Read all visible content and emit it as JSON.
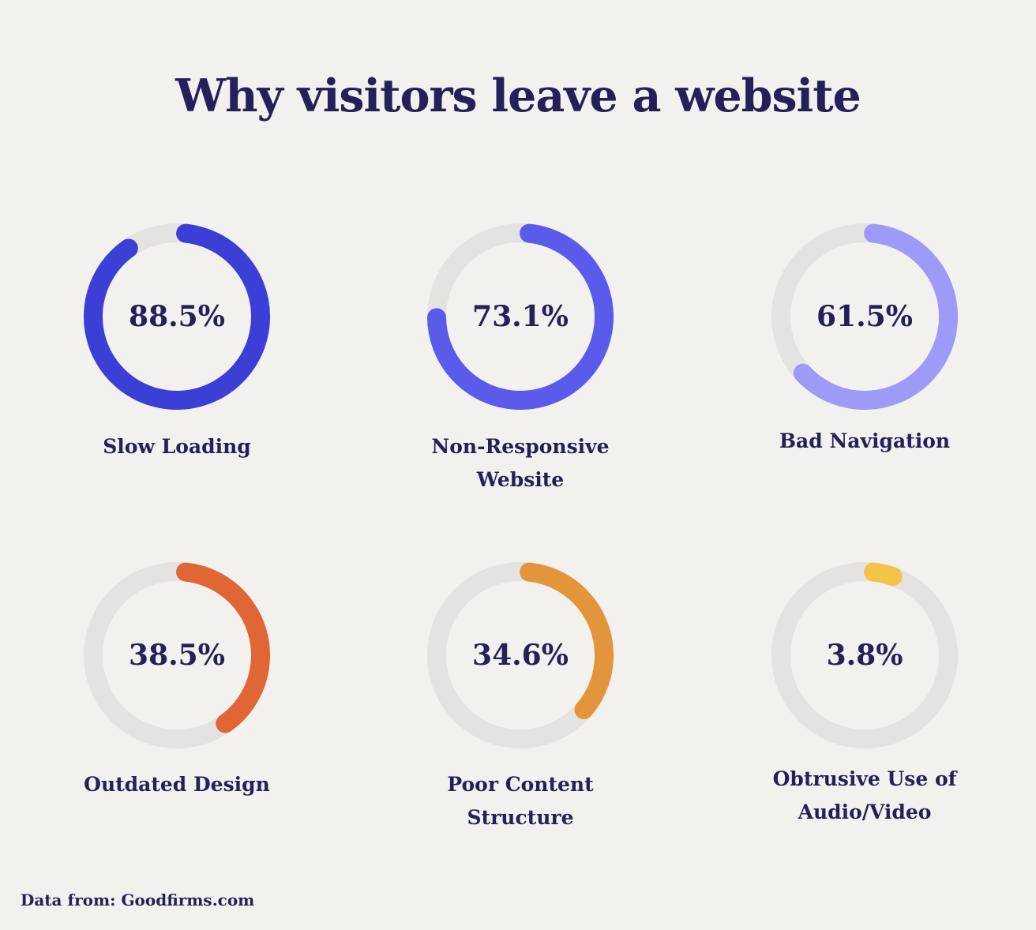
{
  "title": "Why visitors leave a website",
  "source": "Data from: Goodfirms.com",
  "chart_data": {
    "type": "pie",
    "title": "Why visitors leave a website",
    "unit": "%",
    "items": [
      {
        "label": "Slow Loading",
        "value": 88.5,
        "display": "88.5%",
        "color": "#3c3fd6"
      },
      {
        "label": "Non-Responsive\nWebsite",
        "value": 73.1,
        "display": "73.1%",
        "color": "#5a5aeb"
      },
      {
        "label": "Bad Navigation",
        "value": 61.5,
        "display": "61.5%",
        "color": "#9d9bf7"
      },
      {
        "label": "Outdated Design",
        "value": 38.5,
        "display": "38.5%",
        "color": "#e06636"
      },
      {
        "label": "Poor Content\nStructure",
        "value": 34.6,
        "display": "34.6%",
        "color": "#e3953b"
      },
      {
        "label": "Obtrusive Use of\nAudio/Video",
        "value": 3.8,
        "display": "3.8%",
        "color": "#f4c44a"
      }
    ],
    "track_color": "#e5e2e2",
    "text_color": "#25205a",
    "background": "#f3f1ee"
  }
}
